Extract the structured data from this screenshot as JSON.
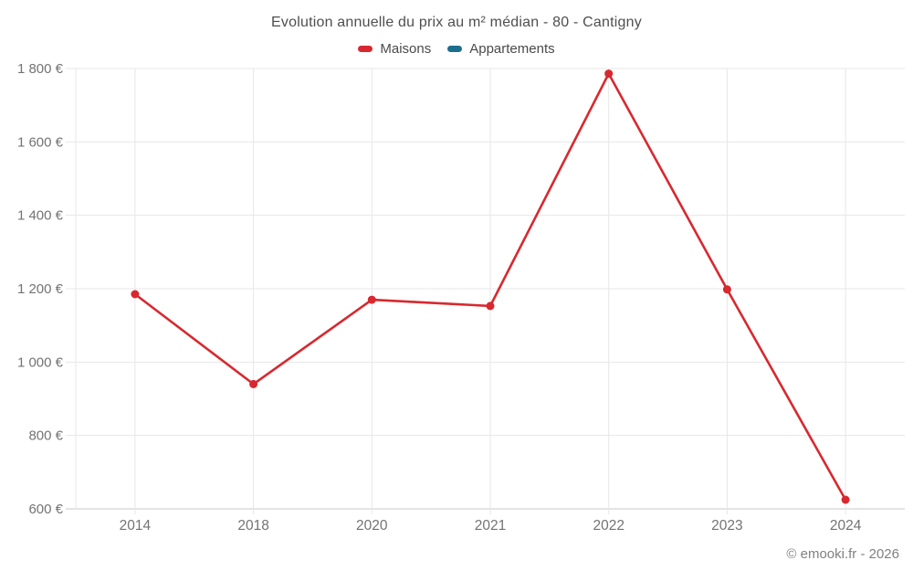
{
  "chart_data": {
    "type": "line",
    "title": "Evolution annuelle du prix au m² médian - 80 - Cantigny",
    "categories": [
      "2014",
      "2018",
      "2020",
      "2021",
      "2022",
      "2023",
      "2024"
    ],
    "series": [
      {
        "name": "Maisons",
        "color": "#d7292f",
        "values": [
          1185,
          940,
          1170,
          1153,
          1786,
          1198,
          625
        ]
      },
      {
        "name": "Appartements",
        "color": "#1c6e8e",
        "values": []
      }
    ],
    "ylim": [
      600,
      1800
    ],
    "yticks": [
      600,
      800,
      1000,
      1200,
      1400,
      1600,
      1800
    ],
    "ytick_labels": [
      "600 €",
      "800 €",
      "1 000 €",
      "1 200 €",
      "1 400 €",
      "1 600 €",
      "1 800 €"
    ],
    "grid": true,
    "legend_position": "top",
    "marker": "circle"
  },
  "footer": {
    "credit": "© emooki.fr - 2026"
  }
}
